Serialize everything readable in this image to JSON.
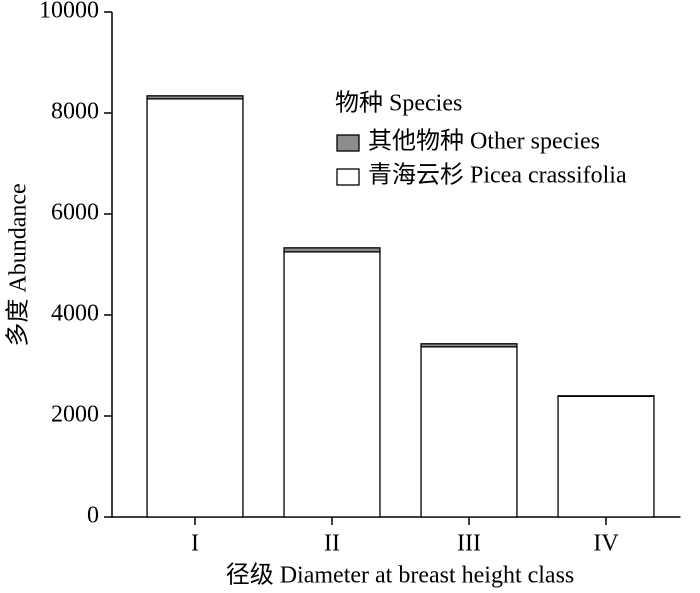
{
  "chart_data": {
    "type": "stacked-bar",
    "x_label": "径级 Diameter at breast height class",
    "y_label": "多度 Abundance",
    "legend_title": "物种 Species",
    "categories": [
      "I",
      "II",
      "III",
      "IV"
    ],
    "series": [
      {
        "name": "其他物种 Other species",
        "color": "#8c8c8c",
        "values": [
          60,
          80,
          60,
          10
        ]
      },
      {
        "name": "青海云杉 Picea crassifolia",
        "color": "#ffffff",
        "values": [
          8280,
          5250,
          3370,
          2390
        ]
      }
    ],
    "ylim": [
      0,
      10000
    ],
    "yticks": [
      0,
      2000,
      4000,
      6000,
      8000,
      10000
    ]
  }
}
